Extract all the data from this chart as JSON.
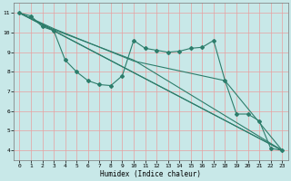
{
  "title": "",
  "xlabel": "Humidex (Indice chaleur)",
  "ylabel": "",
  "bg_color": "#c8e8e8",
  "grid_color": "#e8a0a0",
  "line_color": "#2d7d6b",
  "marker": "D",
  "markersize": 2.0,
  "linewidth": 0.8,
  "xlim": [
    -0.5,
    23.5
  ],
  "ylim": [
    3.5,
    11.5
  ],
  "xticks": [
    0,
    1,
    2,
    3,
    4,
    5,
    6,
    7,
    8,
    9,
    10,
    11,
    12,
    13,
    14,
    15,
    16,
    17,
    18,
    19,
    20,
    21,
    22,
    23
  ],
  "yticks": [
    4,
    5,
    6,
    7,
    8,
    9,
    10,
    11
  ],
  "series": [
    [
      0,
      11.0
    ],
    [
      1,
      10.85
    ],
    [
      2,
      10.3
    ],
    [
      3,
      10.1
    ],
    [
      4,
      8.6
    ],
    [
      5,
      8.0
    ],
    [
      6,
      7.55
    ],
    [
      7,
      7.35
    ],
    [
      8,
      7.3
    ],
    [
      9,
      7.8
    ],
    [
      10,
      9.6
    ],
    [
      11,
      9.2
    ],
    [
      12,
      9.1
    ],
    [
      13,
      9.0
    ],
    [
      14,
      9.05
    ],
    [
      15,
      9.2
    ],
    [
      16,
      9.25
    ],
    [
      17,
      9.6
    ],
    [
      18,
      7.55
    ],
    [
      19,
      5.85
    ],
    [
      20,
      5.85
    ],
    [
      21,
      5.5
    ],
    [
      22,
      4.1
    ],
    [
      23,
      4.0
    ]
  ],
  "line2": [
    [
      0,
      11.0
    ],
    [
      23,
      4.0
    ]
  ],
  "line3": [
    [
      0,
      11.0
    ],
    [
      3,
      10.1
    ],
    [
      23,
      4.0
    ]
  ],
  "line4": [
    [
      0,
      11.0
    ],
    [
      3,
      10.15
    ],
    [
      10,
      8.6
    ],
    [
      23,
      4.0
    ]
  ],
  "line5": [
    [
      0,
      11.0
    ],
    [
      3,
      10.2
    ],
    [
      10,
      8.55
    ],
    [
      18,
      7.55
    ],
    [
      23,
      4.0
    ]
  ]
}
